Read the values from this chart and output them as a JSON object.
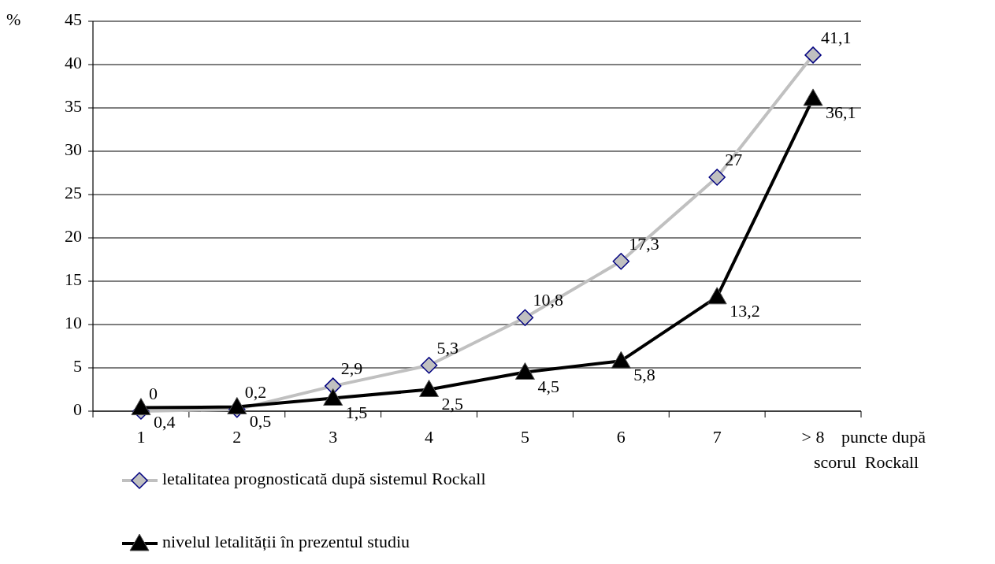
{
  "chart_data": {
    "type": "line",
    "ylabel": "%",
    "xlabel": "puncte după\nscorul  Rockall",
    "categories": [
      "1",
      "2",
      "3",
      "4",
      "5",
      "6",
      "7",
      "> 8"
    ],
    "series": [
      {
        "name": "letalitatea prognosticată după sistemul Rockall",
        "color": "#c0c0c0",
        "marker": "diamond",
        "values": [
          0,
          0.2,
          2.9,
          5.3,
          10.8,
          17.3,
          27,
          41.1
        ],
        "value_labels": [
          "0",
          "0,2",
          "2,9",
          "5,3",
          "10,8",
          "17,3",
          "27",
          "41,1"
        ]
      },
      {
        "name": "nivelul letalității în prezentul studiu",
        "color": "#000000",
        "marker": "triangle",
        "values": [
          0.4,
          0.5,
          1.5,
          2.5,
          4.5,
          5.8,
          13.2,
          36.1
        ],
        "value_labels": [
          "0,4",
          "0,5",
          "1,5",
          "2,5",
          "4,5",
          "5,8",
          "13,2",
          "36,1"
        ]
      }
    ],
    "ylim": [
      0,
      45
    ],
    "yticks": [
      0,
      5,
      10,
      15,
      20,
      25,
      30,
      35,
      40,
      45
    ],
    "grid": "y",
    "legend": "bottom"
  }
}
